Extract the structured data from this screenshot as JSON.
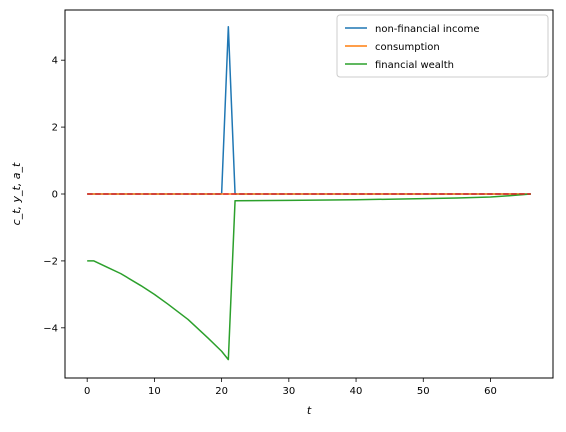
{
  "chart_data": {
    "type": "line",
    "xlabel": "t",
    "ylabel": "c_t, y_t, a_t",
    "xlim": [
      -3.3,
      69.3
    ],
    "ylim": [
      -5.5,
      5.5
    ],
    "xticks": [
      0,
      10,
      20,
      30,
      40,
      50,
      60
    ],
    "yticks": [
      -4,
      -2,
      0,
      2,
      4
    ],
    "grid": false,
    "legend_position": "top-right",
    "series": [
      {
        "name": "non-financial income",
        "color": "#1f77b4",
        "x": [
          0,
          20,
          21,
          22,
          66
        ],
        "y": [
          0,
          0,
          5,
          0,
          0
        ]
      },
      {
        "name": "consumption",
        "color": "#ff7f0e",
        "x": [
          0,
          66
        ],
        "y": [
          0,
          0
        ]
      },
      {
        "name": "financial wealth",
        "color": "#2ca02c",
        "x": [
          0,
          1,
          3,
          5,
          8,
          10,
          12,
          15,
          18,
          20,
          21,
          22,
          30,
          40,
          50,
          55,
          60,
          63,
          66
        ],
        "y": [
          -2.0,
          -2.0,
          -2.19,
          -2.38,
          -2.74,
          -3.0,
          -3.29,
          -3.75,
          -4.31,
          -4.7,
          -4.95,
          -0.2,
          -0.19,
          -0.17,
          -0.14,
          -0.12,
          -0.09,
          -0.05,
          0.0
        ]
      }
    ],
    "reference_line": {
      "y": 0,
      "color": "#d62728",
      "style": "dashed",
      "x_range": [
        0,
        66
      ]
    }
  }
}
